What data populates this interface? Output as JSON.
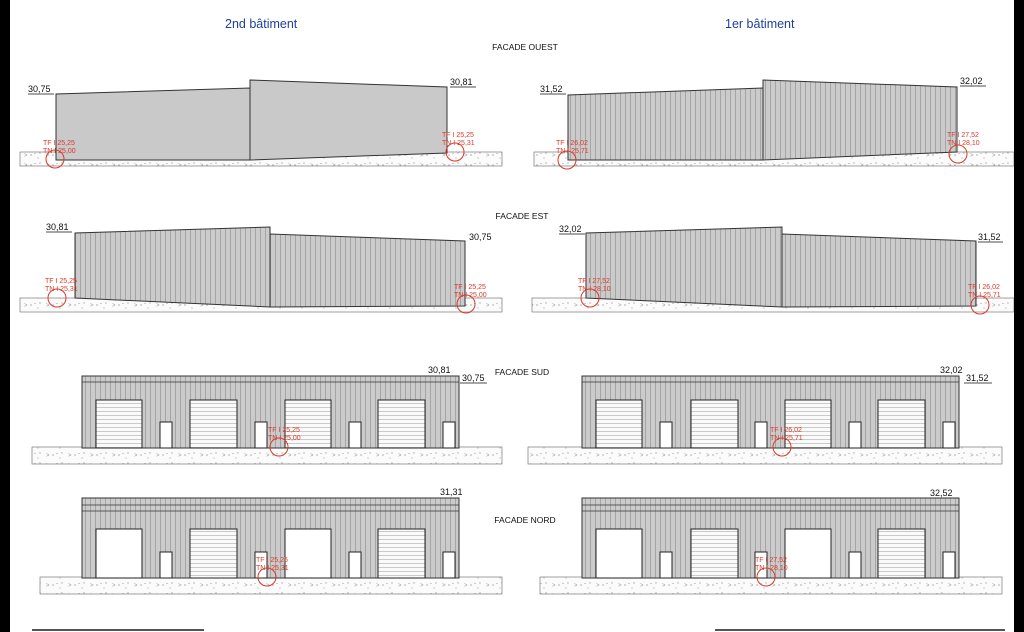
{
  "header": {
    "left_title": "2nd bâtiment",
    "right_title": "1er bâtiment"
  },
  "facades": {
    "ouest": "FACADE OUEST",
    "est": "FACADE EST",
    "sud": "FACADE SUD",
    "nord": "FACADE NORD"
  },
  "elevations": {
    "ouest_left": {
      "left_level": "30,75",
      "right_level": "30,81",
      "marker_left": [
        "TF I 25,25",
        "TN I 25,00"
      ],
      "marker_right": [
        "TF I 25,25",
        "TN I 25,31"
      ]
    },
    "ouest_right": {
      "left_level": "31,52",
      "right_level": "32,02",
      "marker_left": [
        "TF I 26,02",
        "TN I 25,71"
      ],
      "marker_right": [
        "TF I 27,52",
        "TN I 28,10"
      ]
    },
    "est_left": {
      "left_level": "30,81",
      "right_level": "30,75",
      "marker_left": [
        "TF I 25,25",
        "TN I 25,31"
      ],
      "marker_right": [
        "TF I 25,25",
        "TN I 25,00"
      ]
    },
    "est_right": {
      "left_level": "32,02",
      "right_level": "31,52",
      "marker_left": [
        "TF I 27,52",
        "TN I 28,10"
      ],
      "marker_right": [
        "TF I 26,02",
        "TN I 25,71"
      ]
    },
    "sud_left": {
      "level_a": "30,81",
      "level_b": "30,75",
      "marker": [
        "TF I 25,25",
        "TN I 25,00"
      ]
    },
    "sud_right": {
      "level_a": "32,02",
      "level_b": "31,52",
      "marker": [
        "TF I 26,02",
        "TN I 25,71"
      ]
    },
    "nord_left": {
      "level": "31,31",
      "marker": [
        "TF I 25,25",
        "TN I 25,31"
      ]
    },
    "nord_right": {
      "level": "32,52",
      "marker": [
        "TF I 27,52",
        "TN I 28,10"
      ]
    }
  },
  "colors": {
    "title_blue": "#1f3f9e",
    "marker_red": "#d83a2a",
    "wall_fill": "#c8c8c8",
    "wall_stroke": "#333333"
  }
}
